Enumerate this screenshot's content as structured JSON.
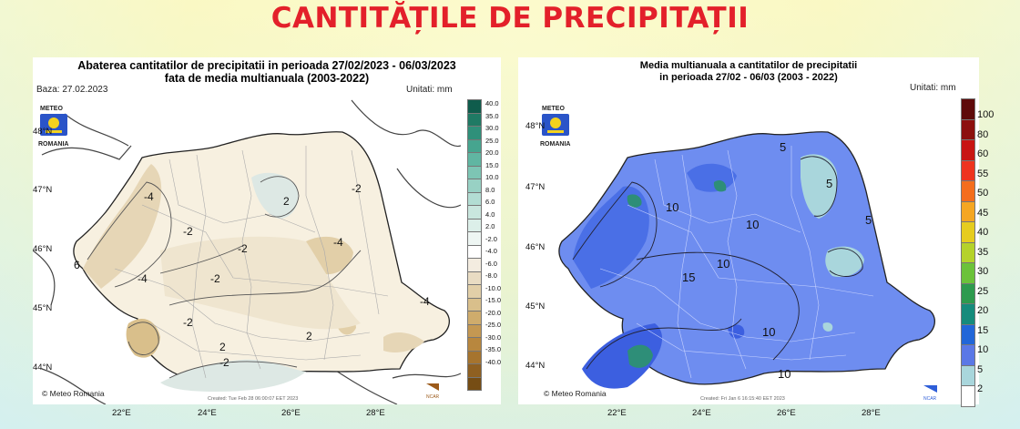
{
  "title": "CANTITĂȚILE DE PRECIPITAȚII",
  "left": {
    "title_line1": "Abaterea cantitatilor de precipitatii in perioada 27/02/2023 - 06/03/2023",
    "title_line2": "fata de media multianuala (2003-2022)",
    "base_label": "Baza: 27.02.2023",
    "units": "Unitati: mm",
    "logo_top": "METEO",
    "logo_bottom": "ROMANIA",
    "copyright": "© Meteo Romania",
    "created": "Created: Tue Feb 28 06:00:07 EET 2023",
    "ncar": "NCAR",
    "lat_labels": [
      "48°N",
      "47°N",
      "46°N",
      "45°N",
      "44°N"
    ],
    "lon_labels": [
      "22°E",
      "24°E",
      "26°E",
      "28°E"
    ],
    "colorbar_labels": [
      "40.0",
      "35.0",
      "30.0",
      "25.0",
      "20.0",
      "15.0",
      "10.0",
      "8.0",
      "6.0",
      "4.0",
      "2.0",
      "-2.0",
      "-4.0",
      "-6.0",
      "-8.0",
      "-10.0",
      "-15.0",
      "-20.0",
      "-25.0",
      "-30.0",
      "-35.0",
      "-40.0"
    ],
    "colorbar_colors": [
      "#0f5c4c",
      "#1f7a64",
      "#2f907a",
      "#46a58f",
      "#60b6a2",
      "#7dc5b4",
      "#98d1c4",
      "#b2ddd3",
      "#c9e6de",
      "#dcefe9",
      "#eef6f3",
      "#ffffff",
      "#f3ece0",
      "#e9dcc3",
      "#e2cfa8",
      "#d9bf8b",
      "#cfac6c",
      "#c49852",
      "#b8873e",
      "#a6742e",
      "#8f6021",
      "#764d14"
    ],
    "contours": [
      "-4",
      "-2",
      "2",
      "-2",
      "-2",
      "-4",
      "-2",
      "6",
      "-4",
      "2",
      "-2",
      "2",
      "-2",
      "-4"
    ]
  },
  "right": {
    "title_line1": "Media multianuala a cantitatilor de precipitatii",
    "title_line2": "in perioada 27/02 - 06/03 (2003 - 2022)",
    "units": "Unitati: mm",
    "logo_top": "METEO",
    "logo_bottom": "ROMANIA",
    "copyright": "© Meteo Romania",
    "created": "Created: Fri Jan 6 16:15:40 EET 2023",
    "ncar": "NCAR",
    "lat_labels": [
      "48°N",
      "47°N",
      "46°N",
      "45°N",
      "44°N"
    ],
    "lon_labels": [
      "22°E",
      "24°E",
      "26°E",
      "28°E"
    ],
    "colorbar_labels": [
      "100",
      "80",
      "60",
      "55",
      "50",
      "45",
      "40",
      "35",
      "30",
      "25",
      "20",
      "15",
      "10",
      "5",
      "2"
    ],
    "colorbar_colors": [
      "#5e0a0a",
      "#8c0f0f",
      "#c81414",
      "#ee3320",
      "#f46d1e",
      "#f5a623",
      "#e6cc1f",
      "#b5d22b",
      "#6cc23a",
      "#2e9a4e",
      "#168b7c",
      "#2266d8",
      "#5b78e6",
      "#a9d6dc",
      "#ffffff"
    ],
    "contours": [
      "5",
      "5",
      "5",
      "10",
      "10",
      "10",
      "15",
      "10",
      "10"
    ]
  }
}
